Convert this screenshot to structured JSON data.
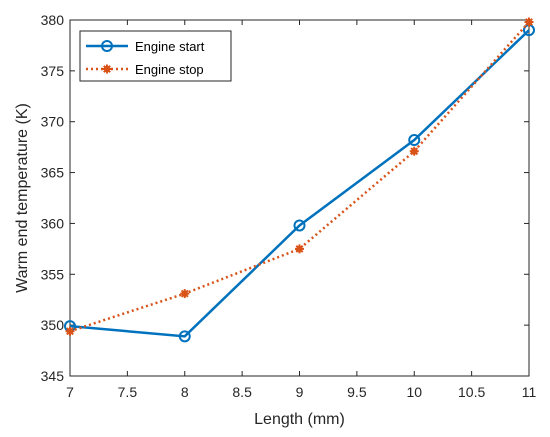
{
  "chart_data": {
    "type": "line",
    "xlabel": "Length (mm)",
    "ylabel": "Warm end temperature (K)",
    "xlim": [
      7,
      11
    ],
    "ylim": [
      345,
      380
    ],
    "x_ticks": [
      "7",
      "7.5",
      "8",
      "8.5",
      "9",
      "9.5",
      "10",
      "10.5",
      "11"
    ],
    "y_ticks": [
      "345",
      "350",
      "355",
      "360",
      "365",
      "370",
      "375",
      "380"
    ],
    "grid": false,
    "legend_position": "top-left",
    "series": [
      {
        "name": "Engine start",
        "color": "#0072BD",
        "line_style": "solid",
        "marker": "open-circle",
        "x": [
          7,
          8,
          9,
          10,
          11
        ],
        "y": [
          349.9,
          348.9,
          359.8,
          368.2,
          379.0
        ]
      },
      {
        "name": "Engine stop",
        "color": "#D95319",
        "line_style": "dotted",
        "marker": "filled-asterisk",
        "x": [
          7,
          8,
          9,
          10,
          11
        ],
        "y": [
          349.4,
          353.1,
          357.5,
          367.1,
          379.8
        ]
      }
    ]
  }
}
